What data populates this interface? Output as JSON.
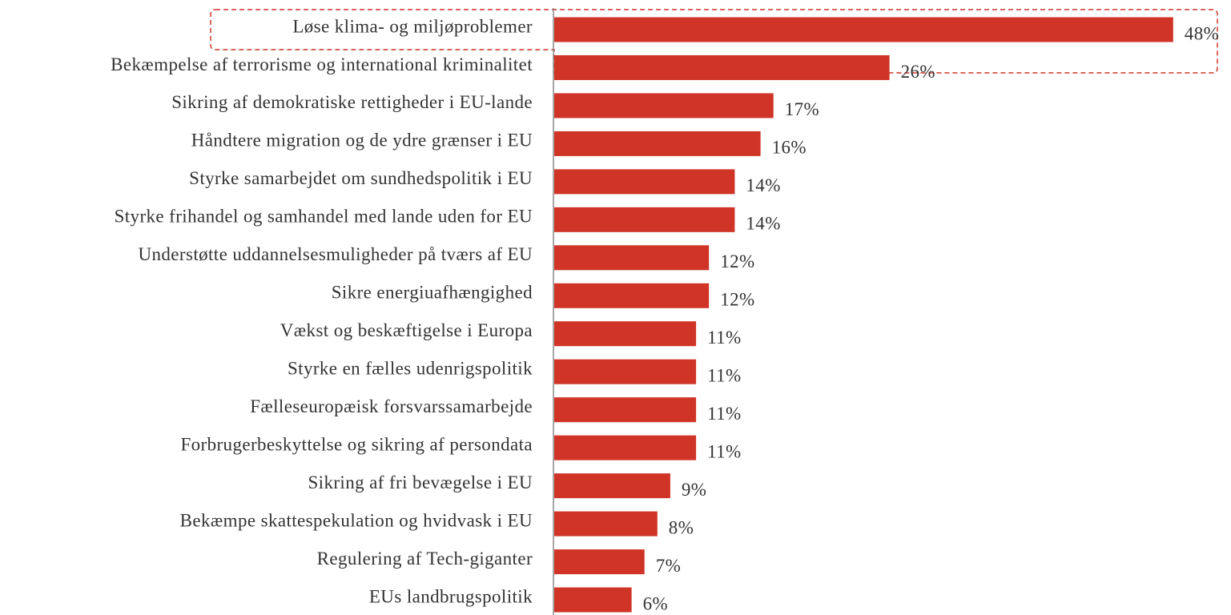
{
  "chart_data": {
    "type": "hbar",
    "categories": [
      "Løse klima- og miljøproblemer",
      "Bekæmpelse af terrorisme og international kriminalitet",
      "Sikring af demokratiske rettigheder i EU-lande",
      "Håndtere migration og de ydre grænser i EU",
      "Styrke samarbejdet om sundhedspolitik i EU",
      "Styrke frihandel og samhandel med lande uden for EU",
      "Understøtte uddannelsesmuligheder på tværs af EU",
      "Sikre energiuafhængighed",
      "Vækst og beskæftigelse i Europa",
      "Styrke en fælles udenrigspolitik",
      "Fælleseuropæisk forsvarssamarbejde",
      "Forbrugerbeskyttelse og sikring af persondata",
      "Sikring af fri bevægelse i EU",
      "Bekæmpe skattespekulation og hvidvask i EU",
      "Regulering af Tech-giganter",
      "EUs landbrugspolitik"
    ],
    "values": [
      48,
      26,
      17,
      16,
      14,
      14,
      12,
      12,
      11,
      11,
      11,
      11,
      9,
      8,
      7,
      6
    ],
    "value_labels": [
      "48%",
      "26%",
      "17%",
      "16%",
      "14%",
      "14%",
      "12%",
      "12%",
      "11%",
      "11%",
      "11%",
      "11%",
      "9%",
      "8%",
      "7%",
      "6%"
    ],
    "color": "#d03427",
    "xlim": [
      0,
      50
    ]
  }
}
